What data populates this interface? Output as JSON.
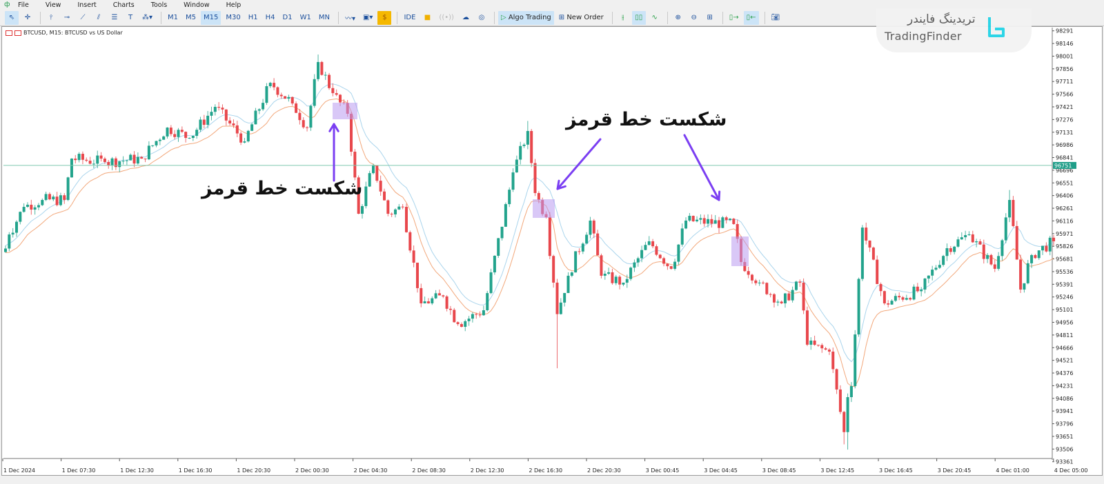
{
  "menu": [
    "File",
    "View",
    "Insert",
    "Charts",
    "Tools",
    "Window",
    "Help"
  ],
  "toolbar": {
    "timeframes": [
      "M1",
      "M5",
      "M15",
      "M30",
      "H1",
      "H4",
      "D1",
      "W1",
      "MN"
    ],
    "active_timeframe": "M15",
    "ide": "IDE",
    "algo_trading": "Algo Trading",
    "new_order": "New Order"
  },
  "chart": {
    "title": "BTCUSD, M15:  BTCUSD vs US Dollar",
    "current_price_label": "96751",
    "horizontal_line_price": 96751
  },
  "brand": {
    "persian": "تریدینگ فایندر",
    "english": "TradingFinder"
  },
  "annotations": [
    {
      "text": "شکست خط قرمز"
    },
    {
      "text": "شکست خط قرمز"
    }
  ],
  "colors": {
    "bull": "#22a38c",
    "bear": "#e8474c",
    "ma_high": "#a9d4ec",
    "ma_low": "#f2a77a",
    "hline": "#7fc9b0",
    "annotation": "#7b3ff2",
    "highlight": "#b99bf0"
  },
  "chart_data": {
    "type": "candlestick",
    "symbol": "BTCUSD",
    "timeframe": "M15",
    "y_ticks": [
      98291,
      98146,
      98001,
      97856,
      97711,
      97566,
      97421,
      97276,
      97131,
      96986,
      96841,
      96696,
      96551,
      96406,
      96261,
      96116,
      95971,
      95826,
      95681,
      95536,
      95391,
      95246,
      95101,
      94956,
      94811,
      94666,
      94521,
      94376,
      94231,
      94086,
      93941,
      93796,
      93651,
      93506,
      93361
    ],
    "ylim": [
      93300,
      98330
    ],
    "x_ticks": [
      "1 Dec 2024",
      "1 Dec 07:30",
      "1 Dec 12:30",
      "1 Dec 16:30",
      "1 Dec 20:30",
      "2 Dec 00:30",
      "2 Dec 04:30",
      "2 Dec 08:30",
      "2 Dec 12:30",
      "2 Dec 16:30",
      "2 Dec 20:30",
      "3 Dec 00:45",
      "3 Dec 04:45",
      "3 Dec 08:45",
      "3 Dec 12:45",
      "3 Dec 16:45",
      "3 Dec 20:45",
      "4 Dec 01:00",
      "4 Dec 05:00"
    ],
    "price_path": [
      {
        "i": 0,
        "c": 95800
      },
      {
        "i": 1,
        "c": 95961
      },
      {
        "i": 5,
        "c": 96277
      },
      {
        "i": 10,
        "c": 96356
      },
      {
        "i": 16,
        "c": 96356
      },
      {
        "i": 18,
        "c": 96829
      },
      {
        "i": 27,
        "c": 96790
      },
      {
        "i": 37,
        "c": 96829
      },
      {
        "i": 44,
        "c": 97184
      },
      {
        "i": 50,
        "c": 97066
      },
      {
        "i": 57,
        "c": 97421
      },
      {
        "i": 65,
        "c": 97026
      },
      {
        "i": 72,
        "c": 97696
      },
      {
        "i": 78,
        "c": 97460
      },
      {
        "i": 82,
        "c": 97184
      },
      {
        "i": 85,
        "c": 97934,
        "h": 98020
      },
      {
        "i": 89,
        "c": 97578
      },
      {
        "i": 93,
        "c": 97342
      },
      {
        "i": 96,
        "c": 96198
      },
      {
        "i": 100,
        "c": 96750
      },
      {
        "i": 104,
        "c": 96198
      },
      {
        "i": 108,
        "c": 96277
      },
      {
        "i": 113,
        "c": 95173
      },
      {
        "i": 119,
        "c": 95252
      },
      {
        "i": 123,
        "c": 94936
      },
      {
        "i": 130,
        "c": 95094
      },
      {
        "i": 138,
        "c": 96671
      },
      {
        "i": 142,
        "c": 97145,
        "h": 97260
      },
      {
        "i": 144,
        "c": 96435
      },
      {
        "i": 147,
        "c": 96159
      },
      {
        "i": 149,
        "c": 95410
      },
      {
        "i": 150,
        "c": 95050,
        "l": 94430
      },
      {
        "i": 153,
        "c": 95489
      },
      {
        "i": 159,
        "c": 96120
      },
      {
        "i": 162,
        "c": 95489
      },
      {
        "i": 168,
        "c": 95410
      },
      {
        "i": 175,
        "c": 95883
      },
      {
        "i": 181,
        "c": 95568
      },
      {
        "i": 185,
        "c": 96120
      },
      {
        "i": 198,
        "c": 96080
      },
      {
        "i": 200,
        "c": 95646
      },
      {
        "i": 205,
        "c": 95410
      },
      {
        "i": 211,
        "c": 95173
      },
      {
        "i": 216,
        "c": 95410
      },
      {
        "i": 218,
        "c": 94700
      },
      {
        "i": 224,
        "c": 94621
      },
      {
        "i": 228,
        "c": 93700,
        "l": 93560
      },
      {
        "i": 229,
        "c": 94100,
        "l": 93500
      },
      {
        "i": 230,
        "c": 94226
      },
      {
        "i": 233,
        "c": 96040
      },
      {
        "i": 239,
        "c": 95173
      },
      {
        "i": 249,
        "c": 95331
      },
      {
        "i": 256,
        "c": 95804
      },
      {
        "i": 262,
        "c": 95962
      },
      {
        "i": 269,
        "c": 95568
      },
      {
        "i": 273,
        "c": 96356,
        "h": 96470
      },
      {
        "i": 276,
        "c": 95331
      },
      {
        "i": 279,
        "c": 95725
      },
      {
        "i": 285,
        "c": 95883
      }
    ],
    "indicators": [
      "moving average (highs)",
      "moving average (lows)"
    ]
  }
}
